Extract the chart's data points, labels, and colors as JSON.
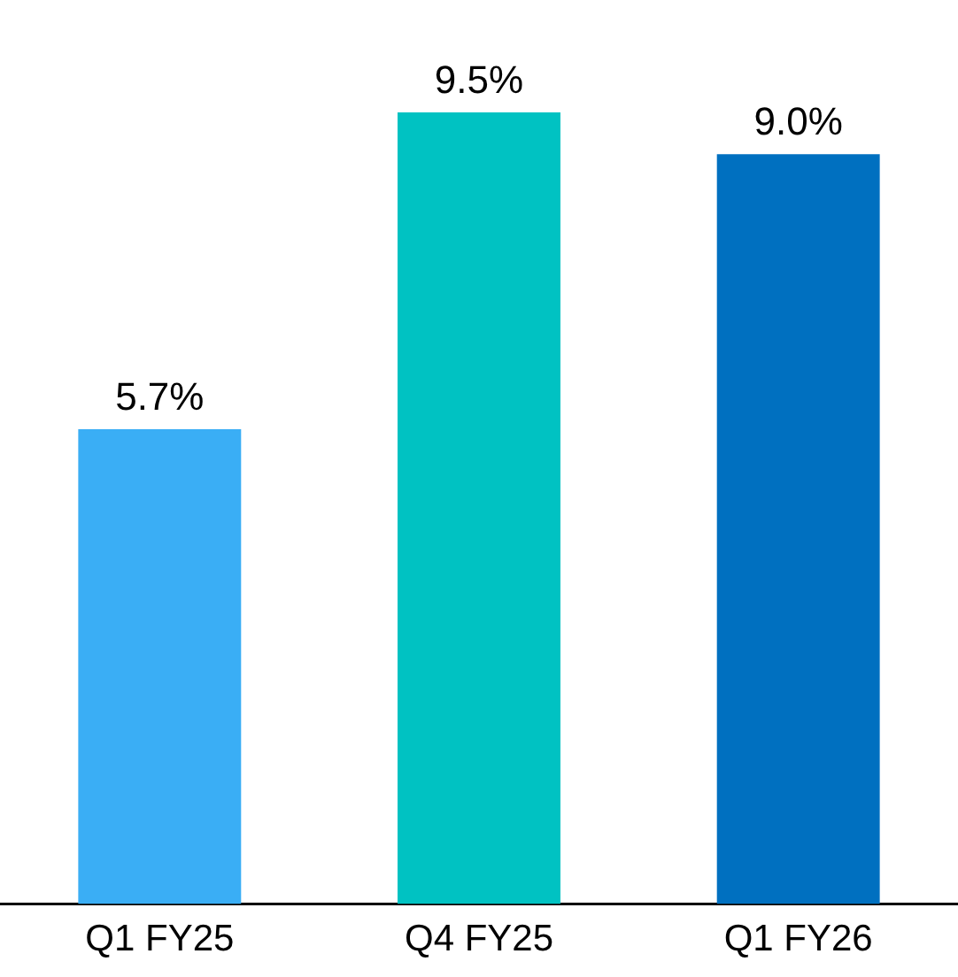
{
  "chart_data": {
    "type": "bar",
    "categories": [
      "Q1 FY25",
      "Q4 FY25",
      "Q1 FY26"
    ],
    "values": [
      5.7,
      9.5,
      9.0
    ],
    "colors": [
      "#3aaef5",
      "#00c2c2",
      "#0070c0"
    ],
    "value_labels": [
      "5.7%",
      "9.5%",
      "9.0%"
    ],
    "grid": false,
    "legend": false
  }
}
